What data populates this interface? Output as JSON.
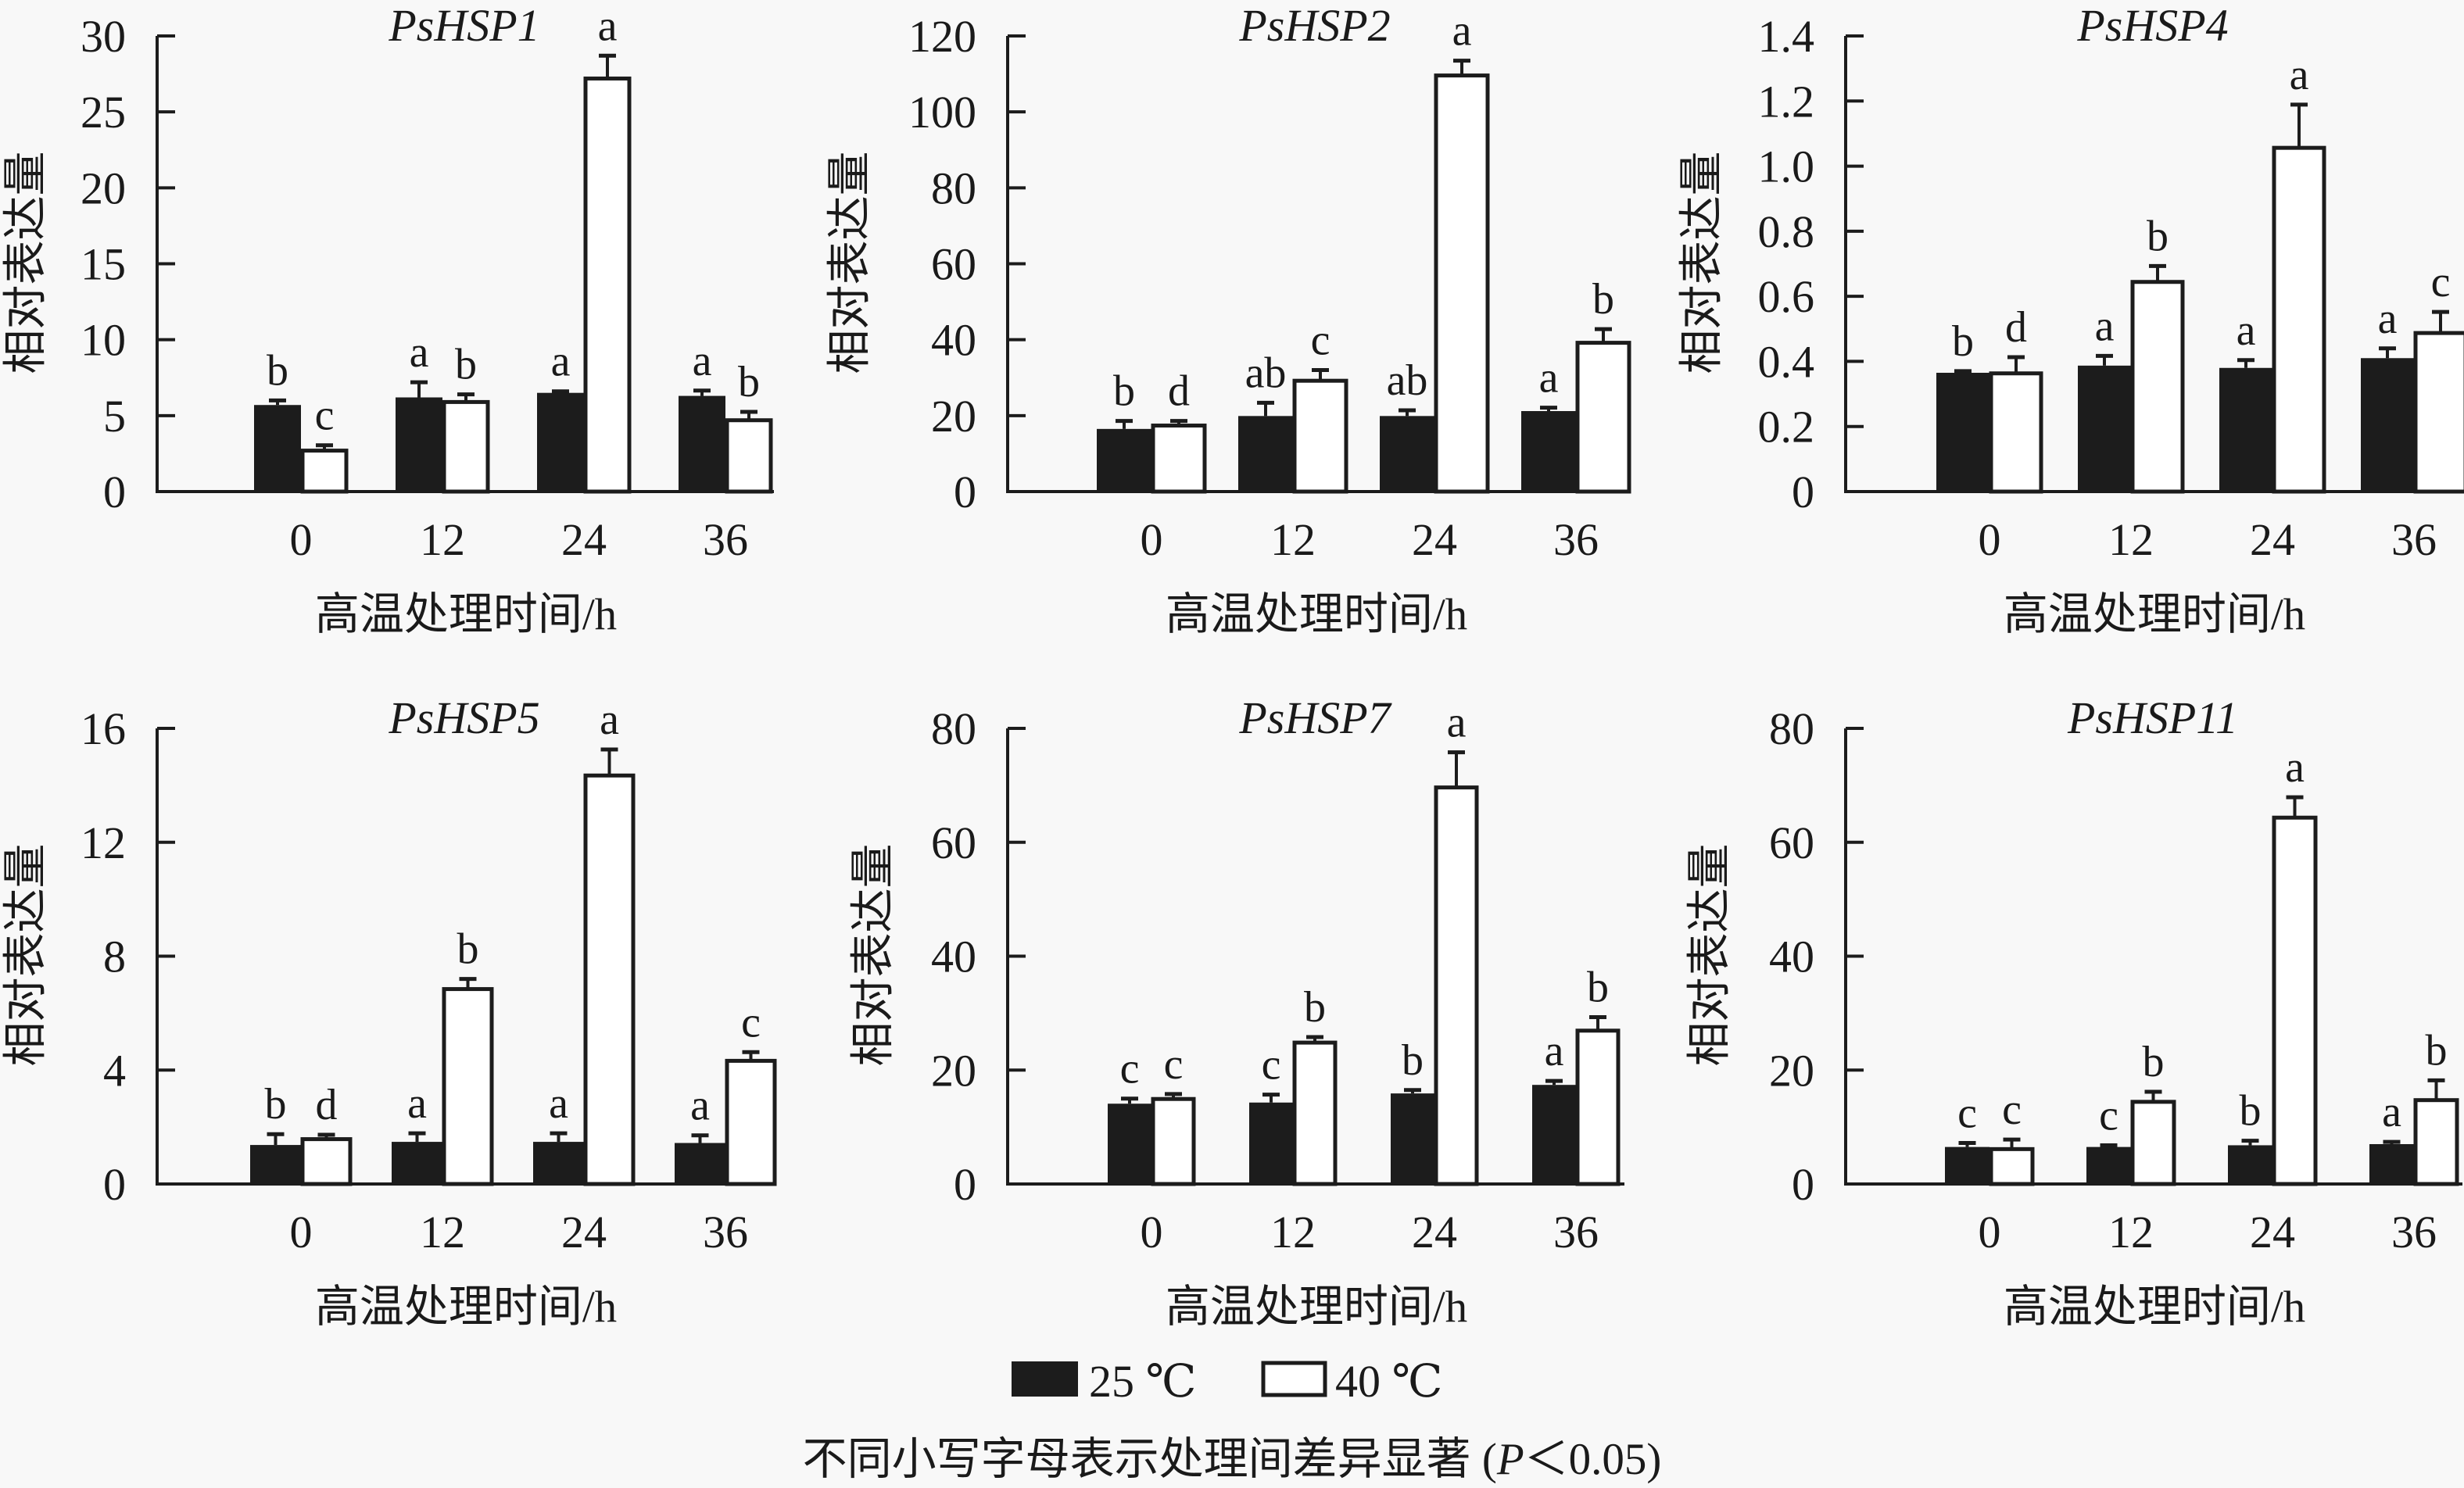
{
  "legend": {
    "items": [
      {
        "label": "25 ℃",
        "fill": "#1c1c1c"
      },
      {
        "label": "40 ℃",
        "fill": "#ffffff"
      }
    ]
  },
  "footnote": {
    "text": "不同小写字母表示处理间差异显著 (",
    "p_symbol": "P",
    "p_rest": "＜0.05)"
  },
  "colors": {
    "background": "#f8f8f8",
    "bar_25C": "#1c1c1c",
    "bar_40C": "#ffffff",
    "stroke": "#1c1c1c"
  },
  "chart_data": [
    {
      "type": "bar",
      "title": "PsHSP1",
      "xlabel": "高温处理时间/h",
      "ylabel": "相对表达量",
      "categories": [
        "0",
        "12",
        "24",
        "36"
      ],
      "ylim": [
        0,
        30
      ],
      "yticks": [
        "0",
        "5",
        "10",
        "15",
        "20",
        "25",
        "30"
      ],
      "series": [
        {
          "name": "25 ℃",
          "values": [
            5.7,
            6.2,
            6.5,
            6.3
          ],
          "errors": [
            0.3,
            1.0,
            0.1,
            0.35
          ],
          "letters": [
            "b",
            "a",
            "a",
            "a"
          ]
        },
        {
          "name": "40 ℃",
          "values": [
            2.8,
            6.0,
            27.3,
            4.8
          ],
          "errors": [
            0.25,
            0.4,
            1.4,
            0.45
          ],
          "letters": [
            "c",
            "b",
            "a",
            "b"
          ]
        }
      ]
    },
    {
      "type": "bar",
      "title": "PsHSP2",
      "xlabel": "高温处理时间/h",
      "ylabel": "相对表达量",
      "categories": [
        "0",
        "12",
        "24",
        "36"
      ],
      "ylim": [
        0,
        120
      ],
      "yticks": [
        "0",
        "20",
        "40",
        "60",
        "80",
        "100",
        "120"
      ],
      "series": [
        {
          "name": "25 ℃",
          "values": [
            16.5,
            19.9,
            19.9,
            21.2
          ],
          "errors": [
            2.1,
            3.5,
            1.5,
            0.9
          ],
          "letters": [
            "b",
            "ab",
            "ab",
            "a"
          ]
        },
        {
          "name": "40 ℃",
          "values": [
            17.8,
            29.6,
            110.0,
            39.6
          ],
          "errors": [
            0.8,
            2.4,
            3.5,
            3.2
          ],
          "letters": [
            "d",
            "c",
            "a",
            "b"
          ]
        }
      ]
    },
    {
      "type": "bar",
      "title": "PsHSP4",
      "xlabel": "高温处理时间/h",
      "ylabel": "相对表达量",
      "categories": [
        "0",
        "12",
        "24",
        "36"
      ],
      "ylim": [
        0,
        1.4
      ],
      "yticks": [
        "0",
        "0.2",
        "0.4",
        "0.6",
        "0.8",
        "1.0",
        "1.2",
        "1.4"
      ],
      "series": [
        {
          "name": "25 ℃",
          "values": [
            0.365,
            0.387,
            0.38,
            0.41
          ],
          "errors": [
            0.005,
            0.03,
            0.024,
            0.03
          ],
          "letters": [
            "b",
            "a",
            "a",
            "a"
          ]
        },
        {
          "name": "40 ℃",
          "values": [
            0.368,
            0.649,
            1.061,
            0.492
          ],
          "errors": [
            0.045,
            0.044,
            0.128,
            0.06
          ],
          "letters": [
            "d",
            "b",
            "a",
            "c"
          ]
        }
      ]
    },
    {
      "type": "bar",
      "title": "PsHSP5",
      "xlabel": "高温处理时间/h",
      "ylabel": "相对表达量",
      "categories": [
        "0",
        "12",
        "24",
        "36"
      ],
      "ylim": [
        0,
        16
      ],
      "yticks": [
        "0",
        "4",
        "8",
        "12",
        "16"
      ],
      "series": [
        {
          "name": "25 ℃",
          "values": [
            1.37,
            1.48,
            1.48,
            1.44
          ],
          "errors": [
            0.38,
            0.3,
            0.3,
            0.27
          ],
          "letters": [
            "b",
            "a",
            "a",
            "a"
          ]
        },
        {
          "name": "40 ℃",
          "values": [
            1.63,
            6.9,
            14.4,
            4.38
          ],
          "errors": [
            0.1,
            0.3,
            0.86,
            0.25
          ],
          "letters": [
            "d",
            "b",
            "a",
            "c"
          ]
        }
      ]
    },
    {
      "type": "bar",
      "title": "PsHSP7",
      "xlabel": "高温处理时间/h",
      "ylabel": "相对表达量",
      "categories": [
        "0",
        "12",
        "24",
        "36"
      ],
      "ylim": [
        0,
        80
      ],
      "yticks": [
        "0",
        "20",
        "40",
        "60",
        "80"
      ],
      "series": [
        {
          "name": "25 ℃",
          "values": [
            14.1,
            14.3,
            15.9,
            17.4
          ],
          "errors": [
            0.9,
            1.4,
            0.6,
            0.7
          ],
          "letters": [
            "c",
            "c",
            "b",
            "a"
          ]
        },
        {
          "name": "40 ℃",
          "values": [
            15.2,
            25.1,
            69.9,
            27.2
          ],
          "errors": [
            0.6,
            0.7,
            5.9,
            2.1
          ],
          "letters": [
            "c",
            "b",
            "a",
            "b"
          ]
        }
      ]
    },
    {
      "type": "bar",
      "title": "PsHSP11",
      "xlabel": "高温处理时间/h",
      "ylabel": "相对表达量",
      "categories": [
        "0",
        "12",
        "24",
        "36"
      ],
      "ylim": [
        0,
        80
      ],
      "yticks": [
        "0",
        "20",
        "40",
        "60",
        "80"
      ],
      "series": [
        {
          "name": "25 ℃",
          "values": [
            6.5,
            6.5,
            6.8,
            7.0
          ],
          "errors": [
            0.7,
            0.3,
            0.8,
            0.4
          ],
          "letters": [
            "c",
            "c",
            "b",
            "a"
          ]
        },
        {
          "name": "40 ℃",
          "values": [
            6.4,
            14.7,
            64.6,
            15.0
          ],
          "errors": [
            1.4,
            1.5,
            3.3,
            3.2
          ],
          "letters": [
            "c",
            "b",
            "a",
            "b"
          ]
        }
      ]
    }
  ]
}
